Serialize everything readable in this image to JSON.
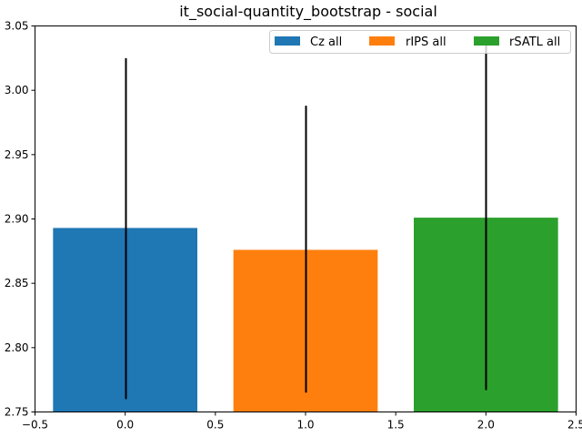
{
  "chart_data": {
    "type": "bar",
    "title": "it_social-quantity_bootstrap - social",
    "xlabel": "",
    "ylabel": "",
    "xlim": [
      -0.5,
      2.5
    ],
    "ylim": [
      2.75,
      3.05
    ],
    "xticks": [
      "−0.5",
      "0.0",
      "0.5",
      "1.0",
      "1.5",
      "2.0",
      "2.5"
    ],
    "xtick_values": [
      -0.5,
      0.0,
      0.5,
      1.0,
      1.5,
      2.0,
      2.5
    ],
    "yticks": [
      "2.75",
      "2.80",
      "2.85",
      "2.90",
      "2.95",
      "3.00",
      "3.05"
    ],
    "ytick_values": [
      2.75,
      2.8,
      2.85,
      2.9,
      2.95,
      3.0,
      3.05
    ],
    "bar_width": 0.8,
    "grid": false,
    "legend_position": "top-right",
    "legend_columns": 3,
    "series": [
      {
        "name": "Cz all",
        "x": 0.0,
        "value": 2.893,
        "err_low": 2.76,
        "err_high": 3.025,
        "color": "#1f77b4"
      },
      {
        "name": "rIPS all",
        "x": 1.0,
        "value": 2.876,
        "err_low": 2.765,
        "err_high": 2.988,
        "color": "#ff7f0e"
      },
      {
        "name": "rSATL all",
        "x": 2.0,
        "value": 2.901,
        "err_low": 2.767,
        "err_high": 3.035,
        "color": "#2ca02c"
      }
    ]
  }
}
